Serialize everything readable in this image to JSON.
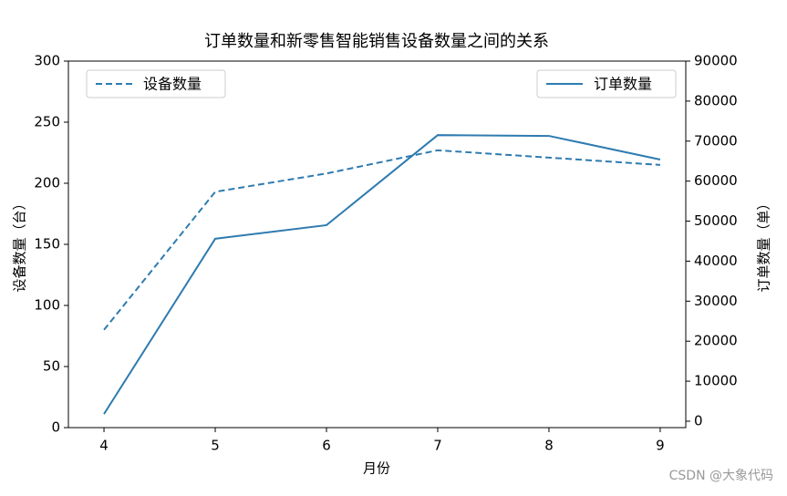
{
  "chart_data": {
    "type": "line",
    "title": "订单数量和新零售智能销售设备数量之间的关系",
    "xlabel": "月份",
    "ylabel": "设备数量（台）",
    "y2label": "订单数量（单）",
    "x": [
      4,
      5,
      6,
      7,
      8,
      9
    ],
    "xlim": [
      3.68,
      9.23
    ],
    "xticks": [
      4,
      5,
      6,
      7,
      8,
      9
    ],
    "ylim": [
      0,
      300
    ],
    "yticks": [
      0,
      50,
      100,
      150,
      200,
      250,
      300
    ],
    "y2lim": [
      -1600,
      90000
    ],
    "y2ticks": [
      0,
      10000,
      20000,
      30000,
      40000,
      50000,
      60000,
      70000,
      80000,
      90000
    ],
    "series": [
      {
        "name": "设备数量",
        "color": "#2e7bb0",
        "linestyle": "dashed",
        "axis": "y",
        "legend_loc": "upper left",
        "values": [
          80,
          193,
          208,
          227,
          221,
          215
        ]
      },
      {
        "name": "订单数量",
        "color": "#2e7bb0",
        "linestyle": "solid",
        "axis": "y2",
        "legend_loc": "upper right",
        "values": [
          1800,
          45600,
          49000,
          71500,
          71300,
          65400
        ]
      }
    ],
    "watermark": "CSDN @大象代码"
  }
}
